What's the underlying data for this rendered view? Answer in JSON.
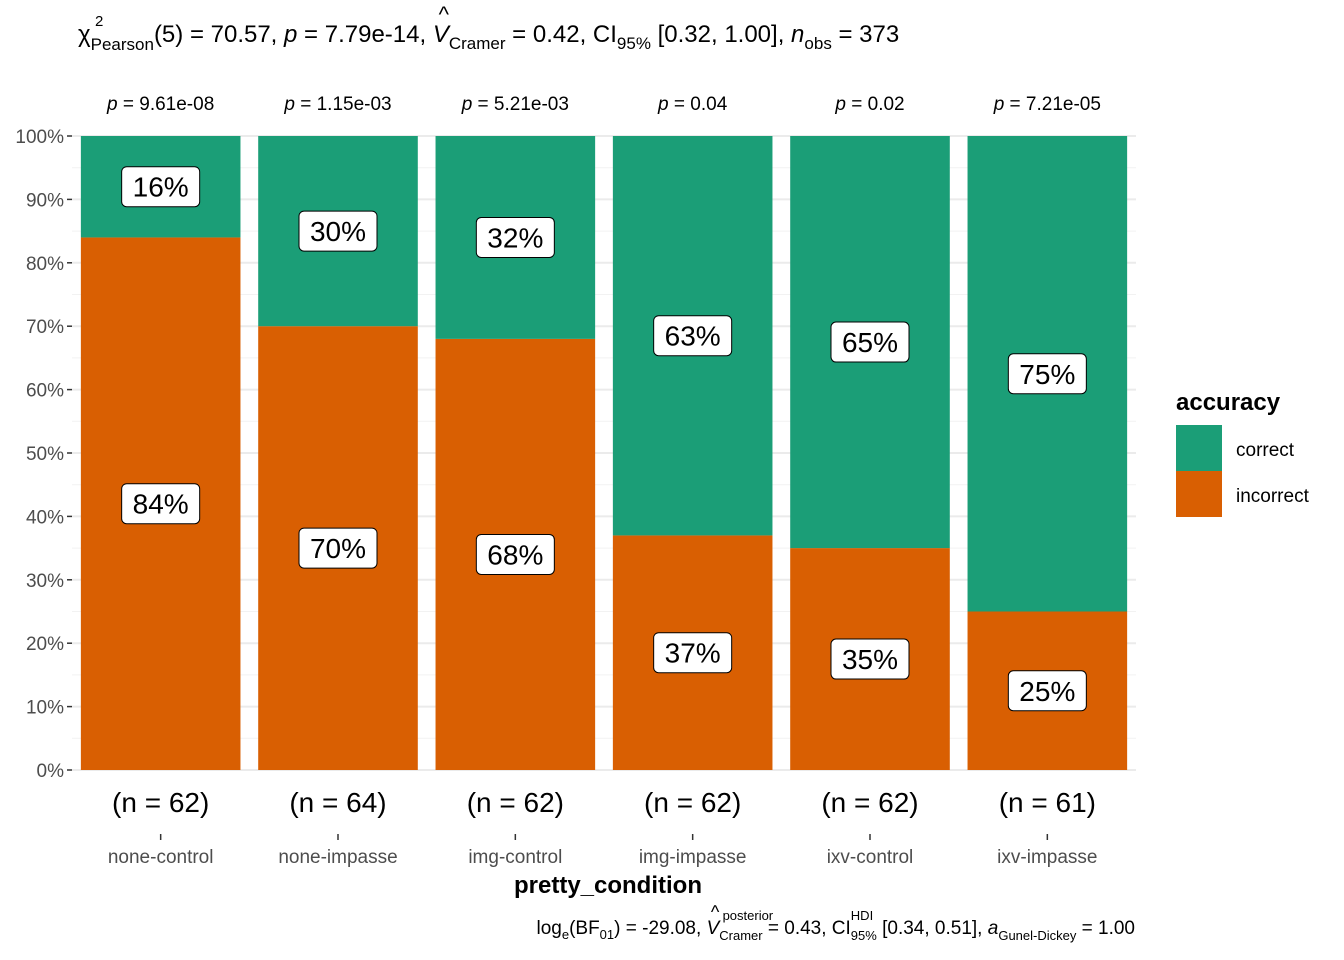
{
  "chart_data": {
    "type": "bar",
    "stacked": true,
    "percent": true,
    "title": {
      "chi": "χ",
      "chi_sup": "2",
      "chi_sub": "Pearson",
      "df_stat": "(5) = 70.57, ",
      "p_label": "p",
      "p_value": " = 7.79e-14, ",
      "v_label": "V",
      "v_hat": "^",
      "v_sub": "Cramer",
      "v_value": " = 0.42, CI",
      "ci_sub": "95%",
      "ci_value": " [0.32, 1.00], ",
      "n_label": "n",
      "n_sub": "obs",
      "n_value": " = 373"
    },
    "caption": {
      "log": "log",
      "log_sub": "e",
      "bf": "(BF",
      "bf_sub": "01",
      "bf_value": ") = -29.08, ",
      "v_label": "V",
      "v_hat": "^",
      "v_sup": "posterior",
      "v_sub": "Cramer",
      "v_value": " = 0.43, CI",
      "ci_sup": "HDI",
      "ci_sub": "95%",
      "ci_value": " [0.34, 0.51], ",
      "a_label": "a",
      "a_sub": "Gunel-Dickey",
      "a_value": " = 1.00"
    },
    "xlabel": "pretty_condition",
    "categories": [
      "none-control",
      "none-impasse",
      "img-control",
      "img-impasse",
      "ixv-control",
      "ixv-impasse"
    ],
    "p_labels": [
      "p = 9.61e-08",
      "p = 1.15e-03",
      "p = 5.21e-03",
      "p = 0.04",
      "p = 0.02",
      "p = 7.21e-05"
    ],
    "n_labels": [
      "(n = 62)",
      "(n = 64)",
      "(n = 62)",
      "(n = 62)",
      "(n = 62)",
      "(n = 61)"
    ],
    "series": [
      {
        "name": "correct",
        "color": "#1b9e77",
        "values": [
          16,
          30,
          32,
          63,
          65,
          75
        ],
        "labels": [
          "16%",
          "30%",
          "32%",
          "63%",
          "65%",
          "75%"
        ]
      },
      {
        "name": "incorrect",
        "color": "#d95f02",
        "values": [
          84,
          70,
          68,
          37,
          35,
          25
        ],
        "labels": [
          "84%",
          "70%",
          "68%",
          "37%",
          "35%",
          "25%"
        ]
      }
    ],
    "y_ticks": [
      0,
      10,
      20,
      30,
      40,
      50,
      60,
      70,
      80,
      90,
      100
    ],
    "y_tick_labels": [
      "0%",
      "10%",
      "20%",
      "30%",
      "40%",
      "50%",
      "60%",
      "70%",
      "80%",
      "90%",
      "100%"
    ],
    "ylim": [
      0,
      100
    ],
    "grid": true,
    "legend": {
      "title": "accuracy",
      "position": "right"
    }
  }
}
